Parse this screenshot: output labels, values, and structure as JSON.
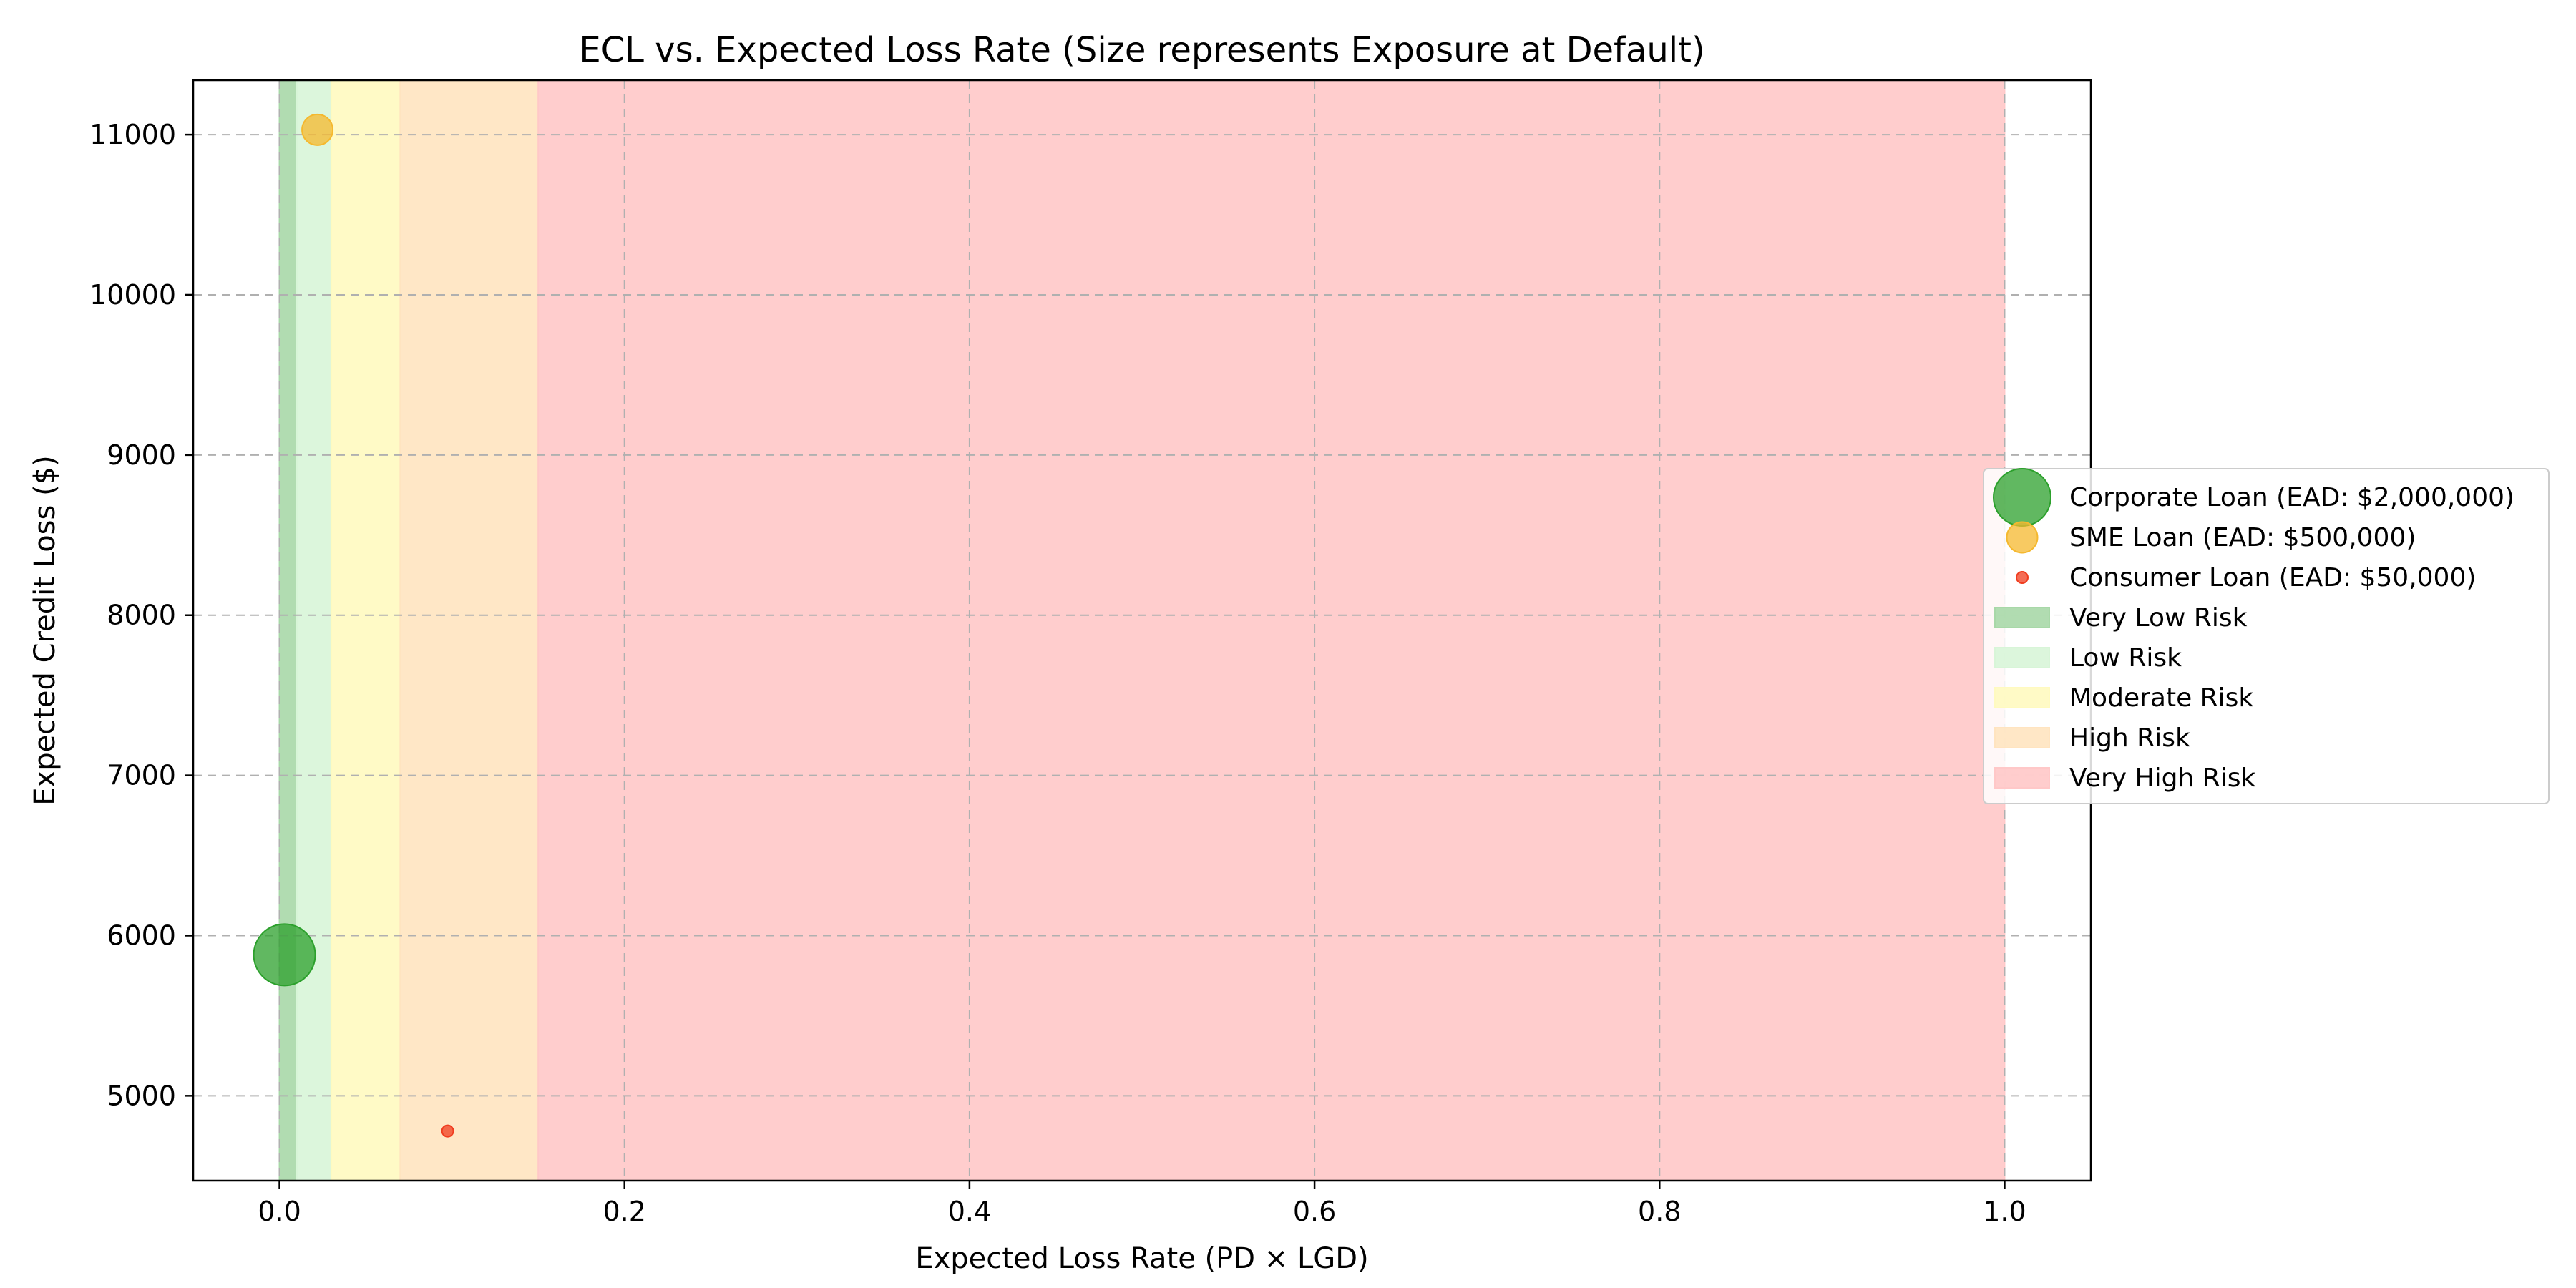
{
  "chart_data": {
    "type": "scatter",
    "title": "ECL vs. Expected Loss Rate (Size represents Exposure at Default)",
    "xlabel": "Expected Loss Rate (PD × LGD)",
    "ylabel": "Expected Credit Loss ($)",
    "xlim": [
      -0.05,
      1.05
    ],
    "ylim": [
      4470,
      11340
    ],
    "xticks": [
      0.0,
      0.2,
      0.4,
      0.6,
      0.8,
      1.0
    ],
    "xtick_labels": [
      "0.0",
      "0.2",
      "0.4",
      "0.6",
      "0.8",
      "1.0"
    ],
    "yticks": [
      5000,
      6000,
      7000,
      8000,
      9000,
      10000,
      11000
    ],
    "ytick_labels": [
      "5000",
      "6000",
      "7000",
      "8000",
      "9000",
      "10000",
      "11000"
    ],
    "grid": true,
    "legend_position": "right",
    "series": [
      {
        "name": "Corporate Loan (EAD: $2,000,000)",
        "x": 0.0029,
        "y": 5880,
        "ead": 2000000,
        "color": "#2ca02c"
      },
      {
        "name": "SME Loan (EAD: $500,000)",
        "x": 0.022,
        "y": 11030,
        "ead": 500000,
        "color": "#f5b82e"
      },
      {
        "name": "Consumer Loan (EAD: $50,000)",
        "x": 0.0975,
        "y": 4780,
        "ead": 50000,
        "color": "#f03c1e"
      }
    ],
    "risk_bands": [
      {
        "name": "Very Low Risk",
        "from": 0.0,
        "to": 0.01,
        "color": "#a8d8a8"
      },
      {
        "name": "Low Risk",
        "from": 0.01,
        "to": 0.03,
        "color": "#d8f5d8"
      },
      {
        "name": "Moderate Risk",
        "from": 0.03,
        "to": 0.07,
        "color": "#fffac0"
      },
      {
        "name": "High Risk",
        "from": 0.07,
        "to": 0.15,
        "color": "#ffe4c0"
      },
      {
        "name": "Very High Risk",
        "from": 0.15,
        "to": 1.0,
        "color": "#ffc8c8"
      }
    ]
  }
}
